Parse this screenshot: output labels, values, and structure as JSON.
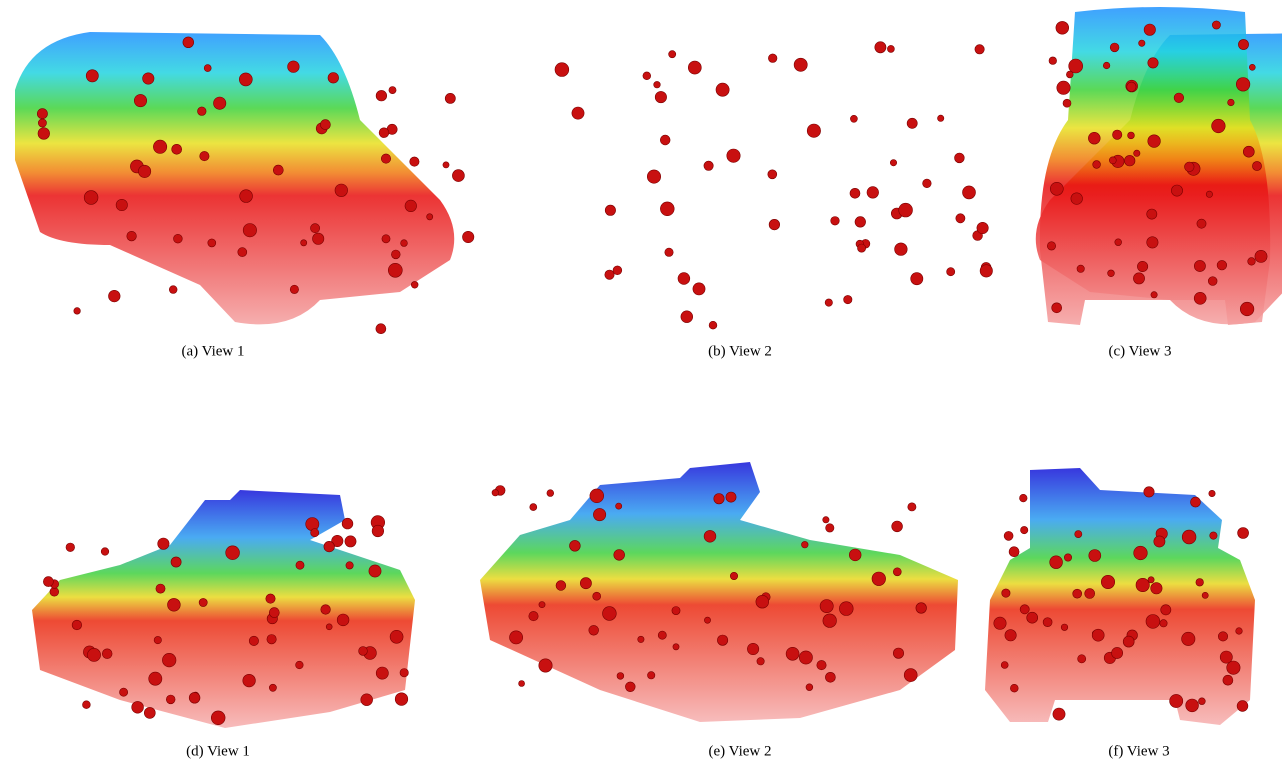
{
  "figure": {
    "panels": [
      {
        "caption": "(a) View 1"
      },
      {
        "caption": "(b) View 2"
      },
      {
        "caption": "(c) View 3"
      },
      {
        "caption": "(d) View 1"
      },
      {
        "caption": "(e) View 2"
      },
      {
        "caption": "(f) View 3"
      }
    ]
  }
}
